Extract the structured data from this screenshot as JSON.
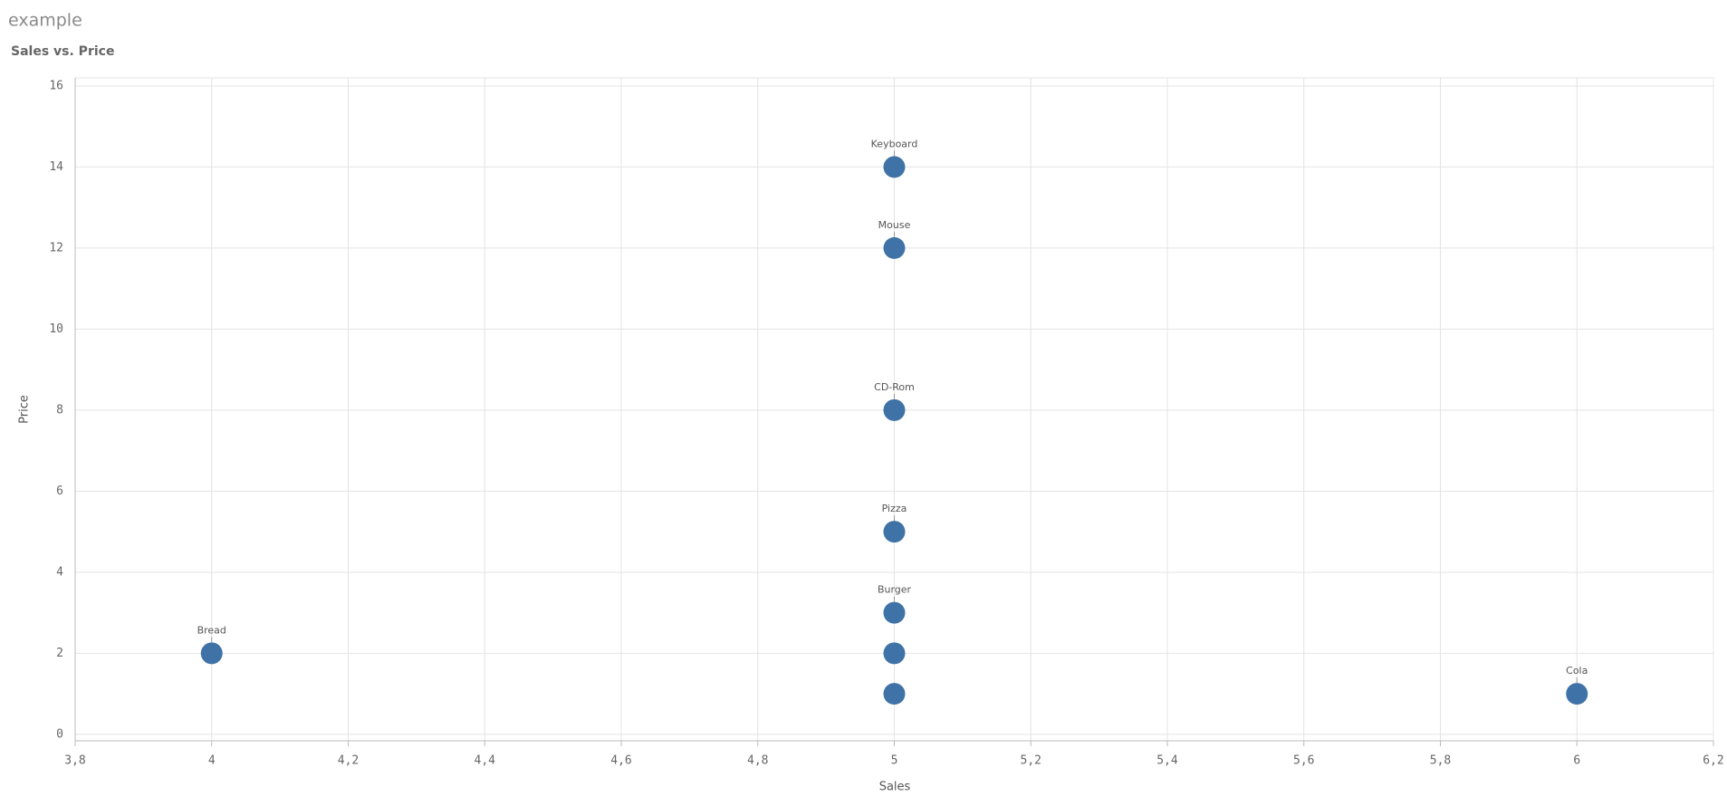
{
  "chart_data": {
    "type": "scatter",
    "title": "example",
    "subtitle": "Sales vs. Price",
    "x_label": "Sales",
    "y_label": "Price",
    "x": [
      4,
      5,
      5,
      5,
      5,
      5,
      5,
      5,
      6
    ],
    "y": [
      2,
      14,
      12,
      8,
      5,
      3,
      2,
      1,
      1
    ],
    "labels": [
      "Bread",
      "Keyboard",
      "Mouse",
      "CD-Rom",
      "Pizza",
      "Burger",
      null,
      null,
      "Cola"
    ],
    "color": "#3f72a6",
    "xlim": [
      3.8,
      6.2
    ],
    "ylim": [
      -0.16,
      16.2
    ],
    "xticks": [
      {
        "value": 3.8,
        "label": "3,8"
      },
      4,
      {
        "value": 4.2,
        "label": "4,2"
      },
      {
        "value": 4.4,
        "label": "4,4"
      },
      {
        "value": 4.6,
        "label": "4,6"
      },
      {
        "value": 4.8,
        "label": "4,8"
      },
      5,
      {
        "value": 5.2,
        "label": "5,2"
      },
      {
        "value": 5.4,
        "label": "5,4"
      },
      {
        "value": 5.6,
        "label": "5,6"
      },
      {
        "value": 5.8,
        "label": "5,8"
      },
      6,
      {
        "value": 6.2,
        "label": "6,2"
      }
    ],
    "yticks": [
      0,
      2,
      4,
      6,
      8,
      10,
      12,
      14,
      16
    ],
    "grid": true
  }
}
